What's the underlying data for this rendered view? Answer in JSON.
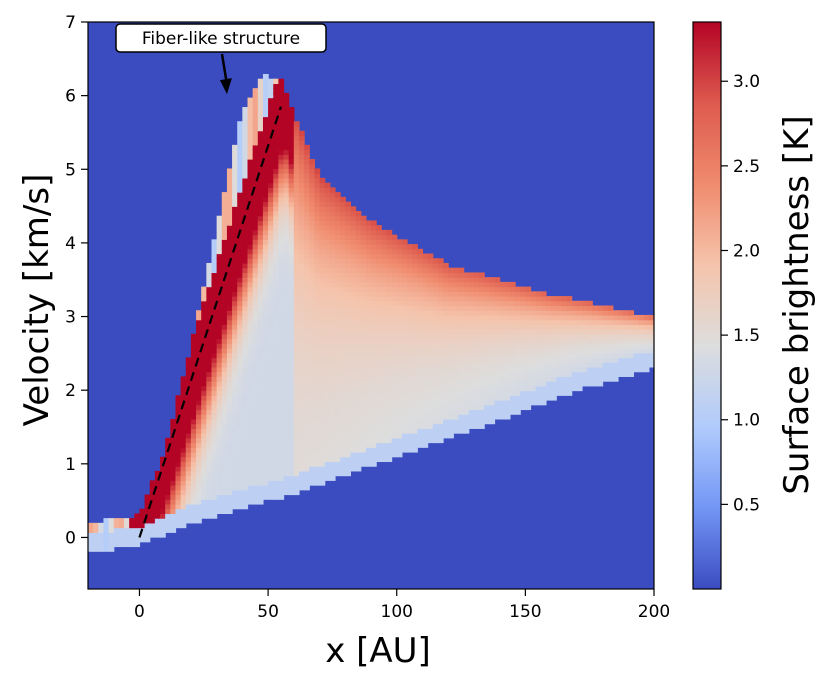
{
  "chart_data": {
    "type": "heatmap",
    "title": "",
    "xlabel": "x [AU]",
    "ylabel": "Velocity [km/s]",
    "xlim": [
      -20,
      200
    ],
    "ylim": [
      -0.7,
      7
    ],
    "x_ticks": [
      0,
      50,
      100,
      150,
      200
    ],
    "y_ticks": [
      0,
      1,
      2,
      3,
      4,
      5,
      6,
      7
    ],
    "x_tick_labels": [
      "0",
      "50",
      "100",
      "150",
      "200"
    ],
    "y_tick_labels": [
      "0",
      "1",
      "2",
      "3",
      "4",
      "5",
      "6",
      "7"
    ],
    "colorbar": {
      "label": "Surface brightness [K]",
      "range": [
        0,
        3.35
      ],
      "ticks": [
        0.5,
        1.0,
        1.5,
        2.0,
        2.5,
        3.0
      ],
      "tick_labels": [
        "0.5",
        "1.0",
        "1.5",
        "2.0",
        "2.5",
        "3.0"
      ],
      "colormap": "coolwarm",
      "stops": [
        "#3b4cc0",
        "#7396f5",
        "#b0cbfc",
        "#dddddd",
        "#f5c4ac",
        "#f08b6e",
        "#dd5a4e",
        "#b40426"
      ]
    },
    "background_value": 0,
    "emission_region": {
      "description_points": [
        {
          "x": 0,
          "v": 0
        },
        {
          "x": 55,
          "v": 6.3
        },
        {
          "x": 200,
          "v": 2.6
        }
      ],
      "upper_edge": [
        [
          -20,
          0.2
        ],
        [
          0,
          0.3
        ],
        [
          10,
          1.2
        ],
        [
          20,
          2.6
        ],
        [
          30,
          4.2
        ],
        [
          40,
          5.8
        ],
        [
          48,
          6.3
        ],
        [
          55,
          6.2
        ],
        [
          70,
          4.9
        ],
        [
          90,
          4.3
        ],
        [
          120,
          3.7
        ],
        [
          160,
          3.3
        ],
        [
          200,
          3.0
        ]
      ],
      "lower_edge": [
        [
          -20,
          -0.2
        ],
        [
          0,
          -0.1
        ],
        [
          20,
          0.2
        ],
        [
          60,
          0.6
        ],
        [
          100,
          1.1
        ],
        [
          140,
          1.6
        ],
        [
          170,
          2.0
        ],
        [
          200,
          2.3
        ]
      ]
    },
    "fit_line": {
      "x": [
        0,
        55
      ],
      "y": [
        0,
        5.85
      ],
      "style": "dashed",
      "color": "#000000"
    },
    "annotation": {
      "text": "Fiber-like structure",
      "arrow_to": {
        "x": 34,
        "y": 6.02
      }
    }
  }
}
